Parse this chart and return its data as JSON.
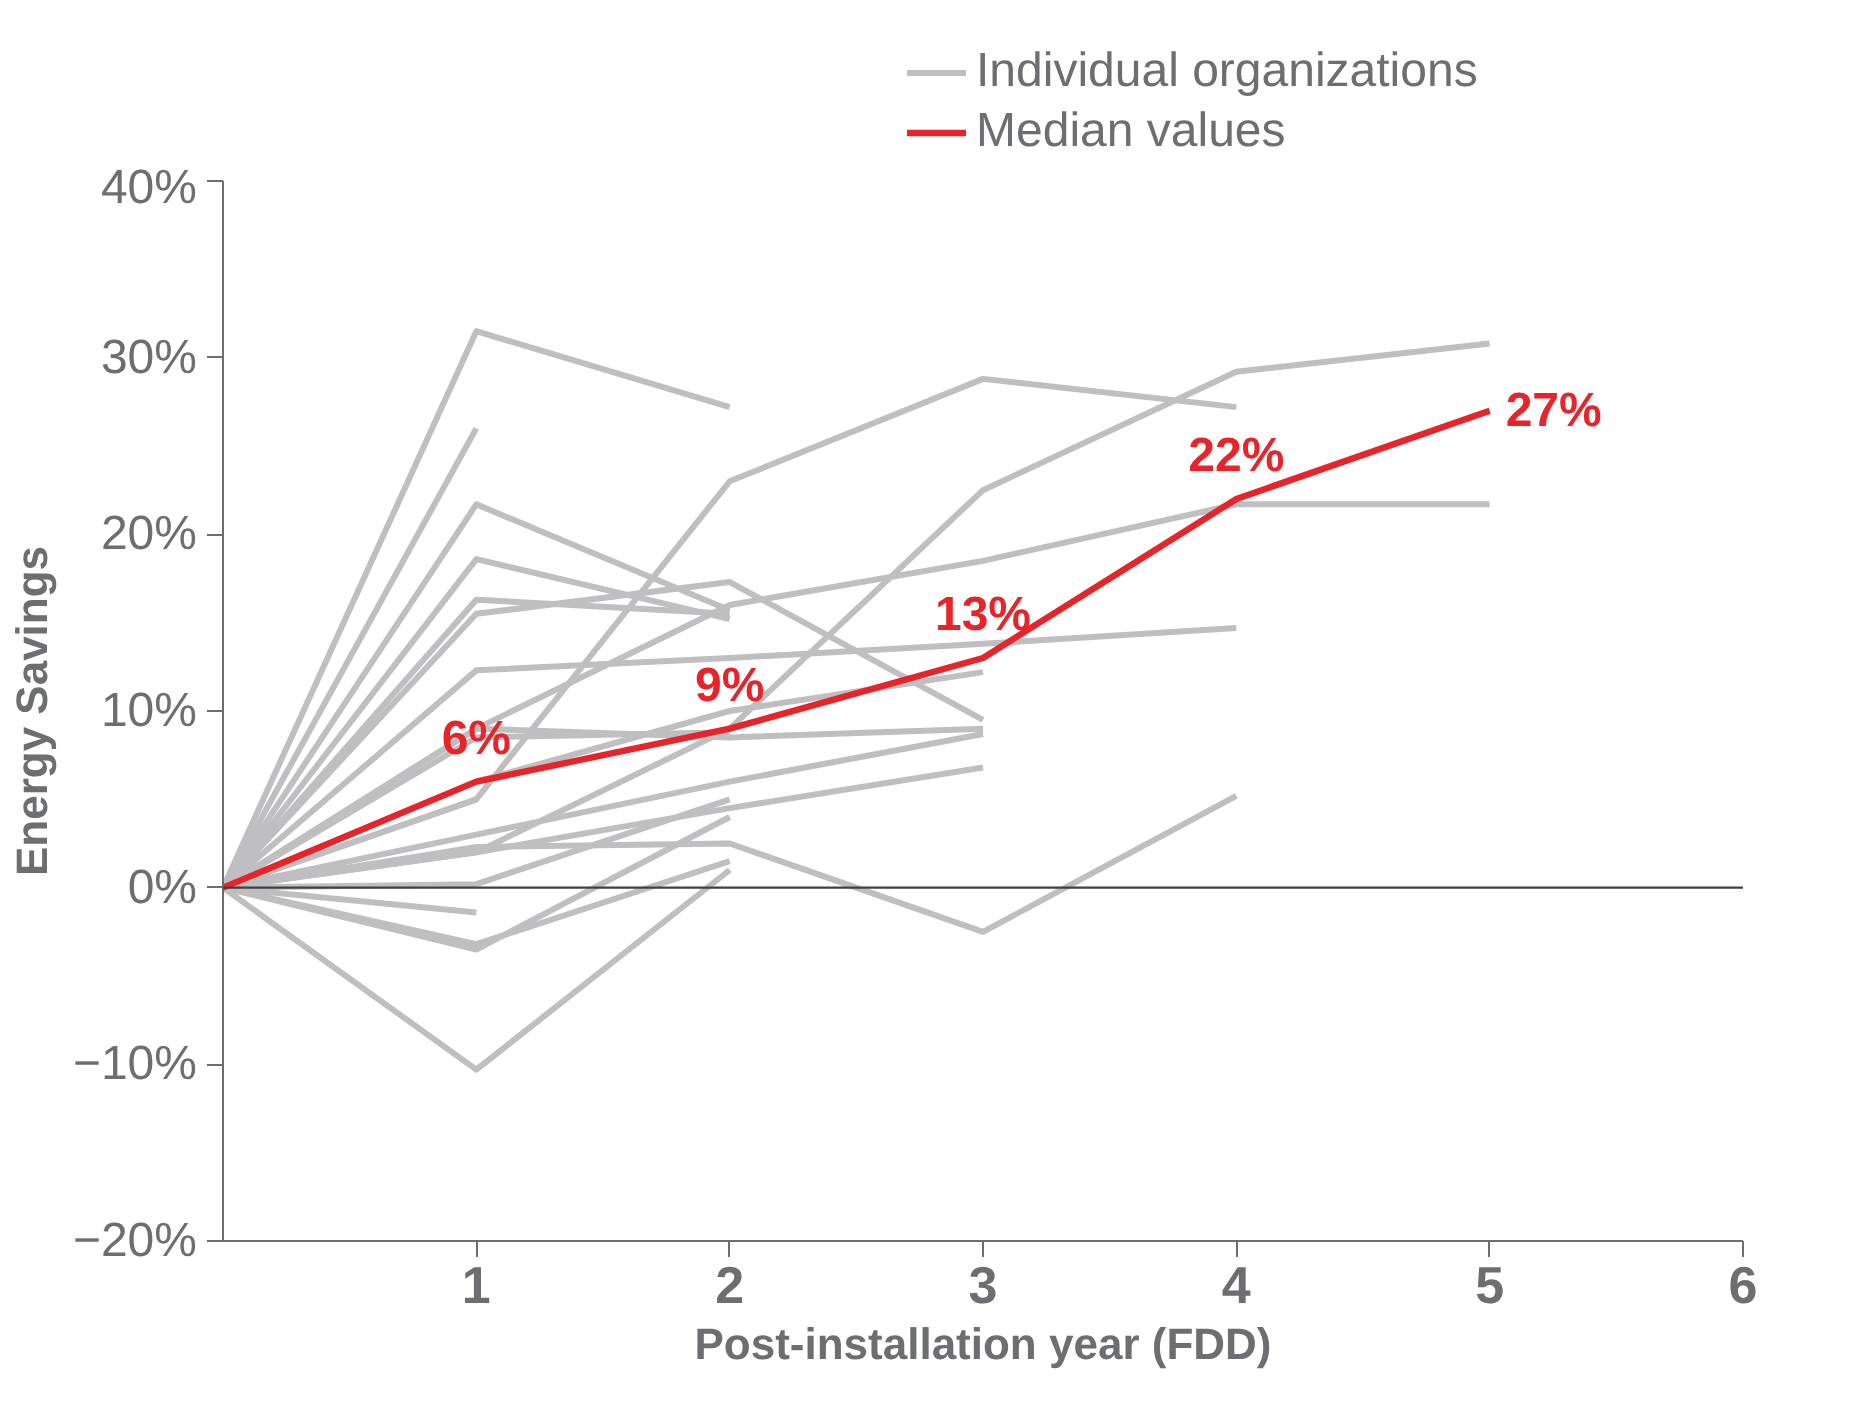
{
  "chart_data": {
    "type": "line",
    "xlabel": "Post-installation year (FDD)",
    "ylabel": "Energy Savings",
    "xlim": [
      0,
      6
    ],
    "ylim": [
      -20,
      40
    ],
    "xticks": [
      1,
      2,
      3,
      4,
      5,
      6
    ],
    "yticks": [
      {
        "value": -20,
        "label": "−20%"
      },
      {
        "value": -10,
        "label": "−10%"
      },
      {
        "value": 0,
        "label": "0%"
      },
      {
        "value": 10,
        "label": "10%"
      },
      {
        "value": 20,
        "label": "20%"
      },
      {
        "value": 30,
        "label": "30%"
      },
      {
        "value": 40,
        "label": "40%"
      }
    ],
    "grid": false,
    "legend": "top",
    "line_style": "solid",
    "marker": "none",
    "ref_lines": [
      {
        "axis": "y",
        "value": 0,
        "label": null,
        "color": "#404040"
      }
    ],
    "series": [
      {
        "name": "Individual organizations",
        "color": "#bfbfc1",
        "x": [
          0,
          1,
          2
        ],
        "values": [
          0,
          31.5,
          27.2
        ]
      },
      {
        "color": "#bfbfc1",
        "x": [
          0,
          1
        ],
        "values": [
          0,
          26
        ]
      },
      {
        "color": "#bfbfc1",
        "x": [
          0,
          1,
          2
        ],
        "values": [
          0,
          21.7,
          15.7
        ]
      },
      {
        "color": "#bfbfc1",
        "x": [
          0,
          1,
          2
        ],
        "values": [
          0,
          18.6,
          15.2
        ]
      },
      {
        "color": "#bfbfc1",
        "x": [
          0,
          1,
          2
        ],
        "values": [
          0,
          16.3,
          15.5
        ]
      },
      {
        "color": "#bfbfc1",
        "x": [
          0,
          1,
          2,
          3
        ],
        "values": [
          0,
          15.5,
          17.3,
          9.5
        ]
      },
      {
        "color": "#bfbfc1",
        "x": [
          0,
          1,
          2,
          3,
          4
        ],
        "values": [
          0,
          12.3,
          13,
          13.8,
          14.7
        ]
      },
      {
        "color": "#bfbfc1",
        "x": [
          0,
          1,
          2,
          3,
          4,
          5
        ],
        "values": [
          0,
          9,
          16,
          18.5,
          21.7,
          21.7
        ]
      },
      {
        "color": "#bfbfc1",
        "x": [
          0,
          1,
          2,
          3,
          4
        ],
        "values": [
          0,
          5,
          23,
          28.8,
          27.2
        ]
      },
      {
        "color": "#bfbfc1",
        "x": [
          0,
          1,
          2,
          3,
          4,
          5
        ],
        "values": [
          0,
          2,
          9,
          22.5,
          29.2,
          30.8
        ]
      },
      {
        "color": "#bfbfc1",
        "x": [
          0,
          1,
          2,
          3
        ],
        "values": [
          0,
          9,
          8.5,
          9
        ]
      },
      {
        "color": "#bfbfc1",
        "x": [
          0,
          1,
          2,
          3
        ],
        "values": [
          0,
          6,
          10,
          12.2
        ]
      },
      {
        "color": "#bfbfc1",
        "x": [
          0,
          1,
          2,
          3
        ],
        "values": [
          0,
          3,
          6,
          8.7
        ]
      },
      {
        "color": "#bfbfc1",
        "x": [
          0,
          1,
          2,
          3
        ],
        "values": [
          0,
          2,
          4.5,
          6.8
        ]
      },
      {
        "color": "#bfbfc1",
        "x": [
          0,
          1,
          2
        ],
        "values": [
          0,
          0.2,
          5
        ]
      },
      {
        "color": "#bfbfc1",
        "x": [
          0,
          1,
          2,
          3,
          4
        ],
        "values": [
          0,
          2.3,
          2.5,
          -2.5,
          5.2
        ]
      },
      {
        "color": "#bfbfc1",
        "x": [
          0,
          1
        ],
        "values": [
          0,
          -1.4
        ]
      },
      {
        "color": "#bfbfc1",
        "x": [
          0,
          1,
          2
        ],
        "values": [
          0,
          -3.2,
          1.5
        ]
      },
      {
        "color": "#bfbfc1",
        "x": [
          0,
          1,
          2
        ],
        "values": [
          0,
          -10.3,
          1
        ]
      },
      {
        "color": "#bfbfc1",
        "x": [
          0,
          1,
          2
        ],
        "values": [
          0,
          -3.5,
          4
        ]
      },
      {
        "color": "#bfbfc1",
        "x": [
          0,
          1
        ],
        "values": [
          0,
          5
        ]
      },
      {
        "color": "#bfbfc1",
        "x": [
          0,
          1,
          2
        ],
        "values": [
          0,
          8.5,
          8.8
        ]
      },
      {
        "name": "Median values",
        "color": "#e8242b",
        "x": [
          0,
          1,
          2,
          3,
          4,
          5
        ],
        "values": [
          0,
          6,
          9,
          13,
          22,
          27
        ],
        "value_labels": [
          null,
          "6%",
          "9%",
          "13%",
          "22%",
          "27%"
        ]
      }
    ]
  }
}
